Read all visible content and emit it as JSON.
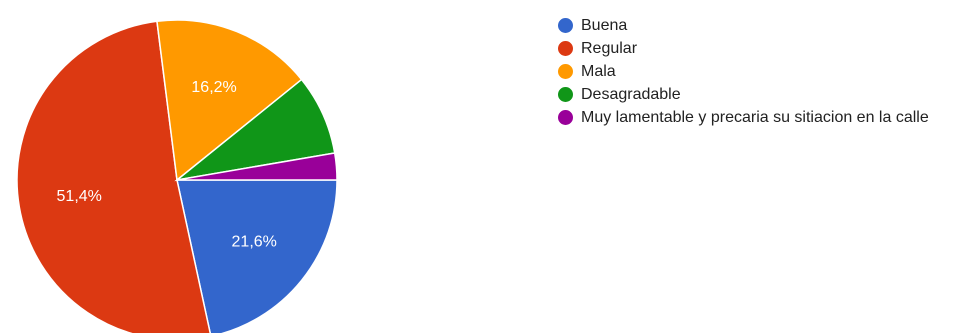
{
  "chart_data": {
    "type": "pie",
    "title": "",
    "legend_position": "right",
    "slices": [
      {
        "label": "Buena",
        "value": 21.6,
        "display": "21,6%",
        "color": "#3366cc"
      },
      {
        "label": "Regular",
        "value": 51.4,
        "display": "51,4%",
        "color": "#dc3912"
      },
      {
        "label": "Mala",
        "value": 16.2,
        "display": "16,2%",
        "color": "#ff9900"
      },
      {
        "label": "Desagradable",
        "value": 8.1,
        "display": "",
        "color": "#109618"
      },
      {
        "label": "Muy lamentable y precaria su sitiacion en la calle",
        "value": 2.7,
        "display": "",
        "color": "#990099"
      }
    ]
  }
}
